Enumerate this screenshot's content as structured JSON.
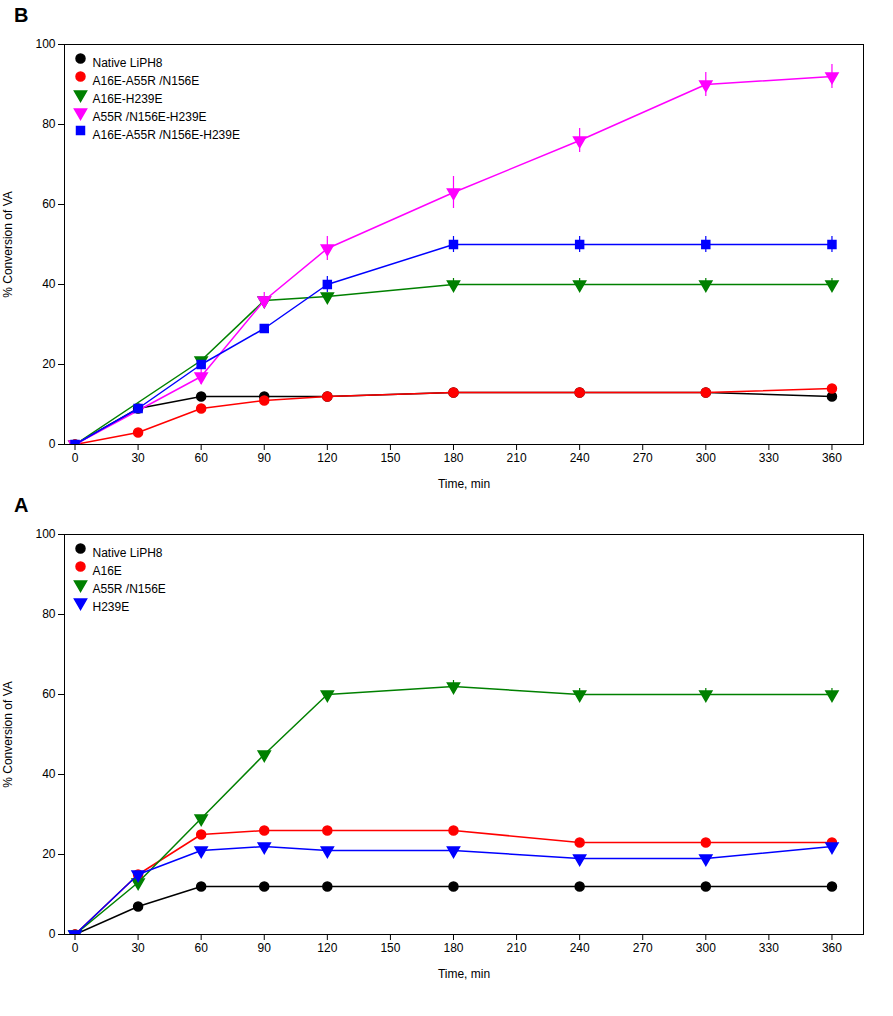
{
  "chart_data": [
    {
      "type": "line",
      "title": "B",
      "x": [
        0,
        30,
        60,
        90,
        120,
        180,
        240,
        300,
        360
      ],
      "xlabel": "Time, min",
      "ylabel": "% Conversion of VA",
      "xlim": [
        -5,
        375
      ],
      "ylim": [
        0,
        100
      ],
      "xticks": [
        0,
        30,
        60,
        90,
        120,
        150,
        180,
        210,
        240,
        270,
        300,
        330,
        360
      ],
      "yticks": [
        0,
        20,
        40,
        60,
        80,
        100
      ],
      "legend": "upper left",
      "series": [
        {
          "name": "Native LiPH8",
          "color": "black",
          "marker": "circle",
          "values": [
            0,
            9,
            12,
            12,
            12,
            13,
            13,
            13,
            12
          ],
          "yerr": [
            0,
            0,
            0,
            0,
            0,
            0,
            0,
            0,
            0
          ]
        },
        {
          "name": "A16E-A55R /N156E",
          "color": "red",
          "marker": "circle",
          "values": [
            0,
            3,
            9,
            11,
            12,
            13,
            13,
            13,
            14
          ],
          "yerr": [
            0,
            0,
            0,
            0,
            0,
            0,
            0,
            0,
            0
          ]
        },
        {
          "name": "A16E-H239E",
          "color": "green",
          "marker": "triangle-down",
          "values": [
            0,
            null,
            21,
            36,
            37,
            40,
            40,
            40,
            40
          ],
          "yerr": [
            0,
            null,
            0,
            0,
            0,
            1.5,
            1.5,
            1.5,
            1.5
          ]
        },
        {
          "name": "A55R /N156E-H239E",
          "color": "magenta",
          "marker": "triangle-down",
          "values": [
            0,
            null,
            17,
            36,
            49,
            63,
            76,
            90,
            92
          ],
          "yerr": [
            0,
            null,
            2,
            2,
            3,
            4,
            3,
            3,
            3
          ]
        },
        {
          "name": "A16E-A55R /N156E-H239E",
          "color": "blue",
          "marker": "square",
          "values": [
            0,
            9,
            20,
            29,
            40,
            50,
            50,
            50,
            50
          ],
          "yerr": [
            0,
            1,
            1,
            1,
            2,
            2,
            2,
            2,
            2
          ]
        }
      ]
    },
    {
      "type": "line",
      "title": "A",
      "x": [
        0,
        30,
        60,
        90,
        120,
        180,
        240,
        300,
        360
      ],
      "xlabel": "Time, min",
      "ylabel": "% Conversion of VA",
      "xlim": [
        -5,
        375
      ],
      "ylim": [
        0,
        100
      ],
      "xticks": [
        0,
        30,
        60,
        90,
        120,
        150,
        180,
        210,
        240,
        270,
        300,
        330,
        360
      ],
      "yticks": [
        0,
        20,
        40,
        60,
        80,
        100
      ],
      "legend": "upper left",
      "series": [
        {
          "name": "Native LiPH8",
          "color": "black",
          "marker": "circle",
          "values": [
            0,
            7,
            12,
            12,
            12,
            12,
            12,
            12,
            12
          ],
          "yerr": [
            0,
            0,
            0,
            0,
            0,
            0,
            0,
            0,
            0
          ]
        },
        {
          "name": "A16E",
          "color": "red",
          "marker": "circle",
          "values": [
            0,
            15,
            25,
            26,
            26,
            26,
            23,
            23,
            23
          ],
          "yerr": [
            0,
            0,
            0,
            0,
            0,
            0,
            0,
            0,
            0
          ]
        },
        {
          "name": "A55R /N156E",
          "color": "green",
          "marker": "triangle-down",
          "values": [
            0,
            13,
            29,
            45,
            60,
            62,
            60,
            60,
            60
          ],
          "yerr": [
            0,
            0,
            0,
            0,
            0,
            1.5,
            1.5,
            1.5,
            1.5
          ]
        },
        {
          "name": "H239E",
          "color": "blue",
          "marker": "triangle-down",
          "values": [
            0,
            15,
            21,
            22,
            21,
            21,
            19,
            19,
            22
          ],
          "yerr": [
            0,
            0,
            0,
            0,
            0,
            0,
            0,
            0,
            0
          ]
        }
      ]
    }
  ]
}
